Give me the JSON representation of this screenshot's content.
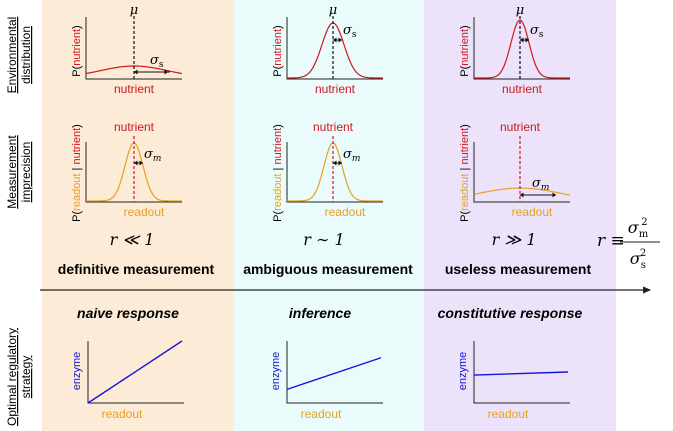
{
  "colors": {
    "panel_left": "#fcebd6",
    "panel_middle": "#e9fcfb",
    "panel_right": "#ece3fa",
    "nutrient": "#d0161e",
    "readout": "#e8a020",
    "enzyme": "#1515d8",
    "axis": "#222222"
  },
  "row_labels": {
    "environmental": [
      "Environmental",
      "distribution"
    ],
    "measurement": [
      "Measurement",
      "imprecision"
    ],
    "strategy": [
      "Optimal regulatory",
      "strategy"
    ]
  },
  "columns": [
    {
      "regime": "r ≪ 1",
      "title": "definitive measurement",
      "response": "naive response",
      "env": {
        "mu": "μ",
        "sigma_label": "σ",
        "sigma_sub": "s",
        "xlabel": "nutrient",
        "ylabel_pre": "P(",
        "ylabel_mid": "nutrient",
        "ylabel_post": ")"
      },
      "meas": {
        "nutrient_label": "nutrient",
        "sigma_label": "σ",
        "sigma_sub": "m",
        "xlabel": "readout",
        "ylabel_pre": "P(",
        "ylabel_a": "readout",
        "ylabel_sep": " | ",
        "ylabel_b": "nutrient",
        "ylabel_post": ")"
      },
      "strategy": {
        "xlabel": "readout",
        "ylabel": "enzyme",
        "line_y0": 0.0,
        "line_y1": 1.0
      }
    },
    {
      "regime": "r ∼ 1",
      "title": "ambiguous measurement",
      "response": "inference",
      "env": {
        "mu": "μ",
        "sigma_label": "σ",
        "sigma_sub": "s",
        "xlabel": "nutrient",
        "ylabel_pre": "P(",
        "ylabel_mid": "nutrient",
        "ylabel_post": ")"
      },
      "meas": {
        "nutrient_label": "nutrient",
        "sigma_label": "σ",
        "sigma_sub": "m",
        "xlabel": "readout",
        "ylabel_pre": "P(",
        "ylabel_a": "readout",
        "ylabel_sep": " | ",
        "ylabel_b": "nutrient",
        "ylabel_post": ")"
      },
      "strategy": {
        "xlabel": "readout",
        "ylabel": "enzyme",
        "line_y0": 0.22,
        "line_y1": 0.73
      }
    },
    {
      "regime": "r ≫ 1",
      "title": "useless measurement",
      "response": "constitutive response",
      "env": {
        "mu": "μ",
        "sigma_label": "σ",
        "sigma_sub": "s",
        "xlabel": "nutrient",
        "ylabel_pre": "P(",
        "ylabel_mid": "nutrient",
        "ylabel_post": ")"
      },
      "meas": {
        "nutrient_label": "nutrient",
        "sigma_label": "σ",
        "sigma_sub": "m",
        "xlabel": "readout",
        "ylabel_pre": "P(",
        "ylabel_a": "readout",
        "ylabel_sep": " | ",
        "ylabel_b": "nutrient",
        "ylabel_post": ")"
      },
      "strategy": {
        "xlabel": "readout",
        "ylabel": "enzyme",
        "line_y0": 0.45,
        "line_y1": 0.5
      }
    }
  ],
  "definition": {
    "lhs": "r ≡",
    "num": "σ",
    "num_sub": "m",
    "num_sup": "2",
    "den": "σ",
    "den_sub": "s",
    "den_sup": "2"
  }
}
